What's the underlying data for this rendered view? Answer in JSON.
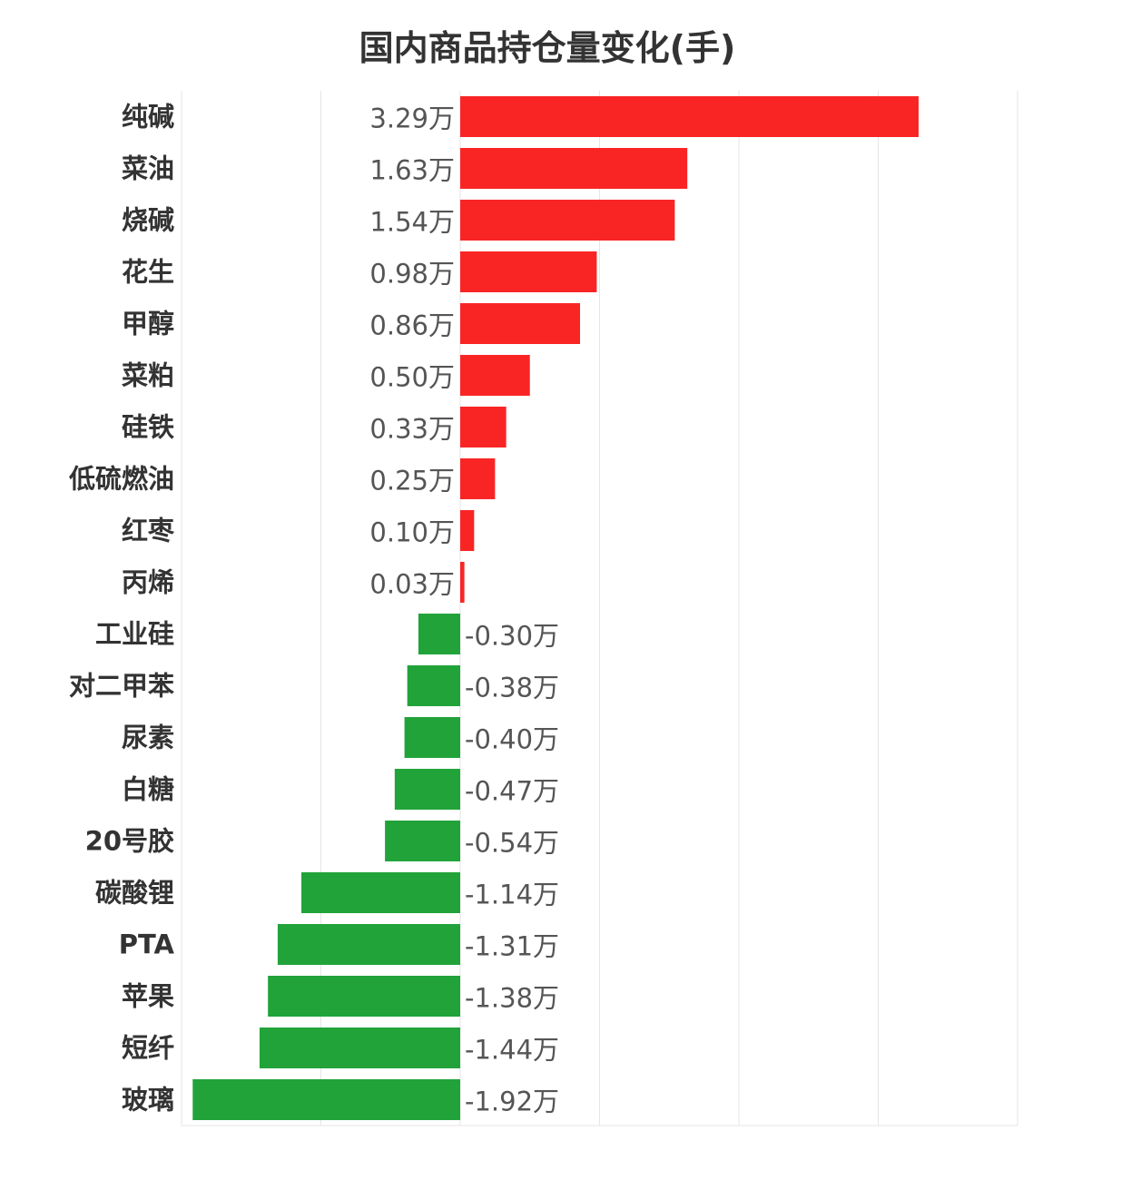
{
  "chart_data": {
    "type": "bar",
    "orientation": "horizontal",
    "title": "国内商品持仓量变化(手)",
    "unit_suffix": "万",
    "xlim": [
      -2,
      4
    ],
    "grid": true,
    "categories": [
      "纯碱",
      "菜油",
      "烧碱",
      "花生",
      "甲醇",
      "菜粕",
      "硅铁",
      "低硫燃油",
      "红枣",
      "丙烯",
      "工业硅",
      "对二甲苯",
      "尿素",
      "白糖",
      "20号胶",
      "碳酸锂",
      "PTA",
      "苹果",
      "短纤",
      "玻璃"
    ],
    "values": [
      3.29,
      1.63,
      1.54,
      0.98,
      0.86,
      0.5,
      0.33,
      0.25,
      0.1,
      0.03,
      -0.3,
      -0.38,
      -0.4,
      -0.47,
      -0.54,
      -1.14,
      -1.31,
      -1.38,
      -1.44,
      -1.92
    ],
    "labels": [
      "3.29万",
      "1.63万",
      "1.54万",
      "0.98万",
      "0.86万",
      "0.50万",
      "0.33万",
      "0.25万",
      "0.10万",
      "0.03万",
      "-0.30万",
      "-0.38万",
      "-0.40万",
      "-0.47万",
      "-0.54万",
      "-1.14万",
      "-1.31万",
      "-1.38万",
      "-1.44万",
      "-1.92万"
    ],
    "colors": {
      "positive": "#f92525",
      "negative": "#21a33a"
    }
  }
}
